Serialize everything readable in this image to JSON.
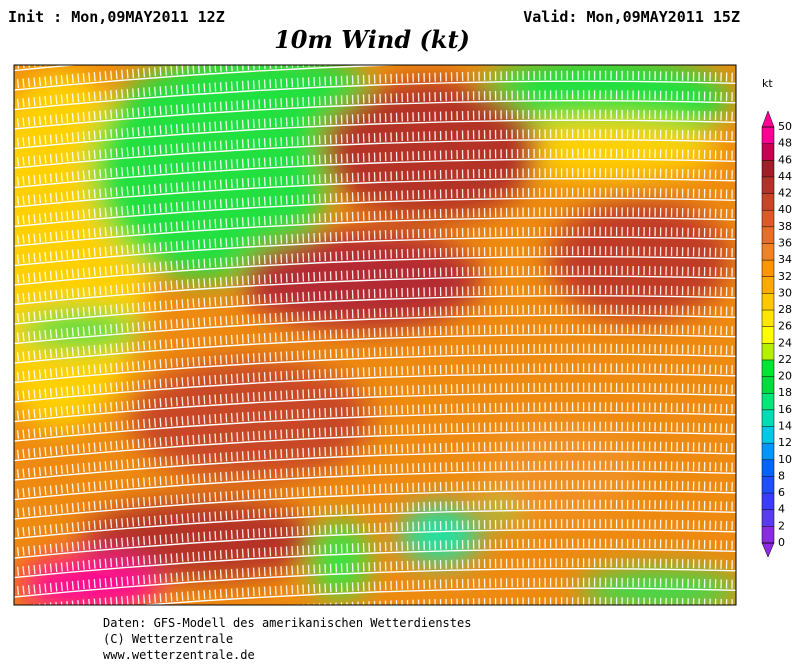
{
  "header": {
    "init": "Init : Mon,09MAY2011 12Z",
    "valid": "Valid: Mon,09MAY2011 15Z",
    "title": "10m Wind (kt)"
  },
  "colorbar": {
    "unit": "kt",
    "ticks": [
      0,
      2,
      4,
      6,
      8,
      10,
      12,
      14,
      16,
      18,
      20,
      22,
      24,
      26,
      28,
      30,
      32,
      34,
      36,
      38,
      40,
      42,
      44,
      46,
      48,
      50
    ],
    "colors": [
      "#8a2be2",
      "#5a3cf0",
      "#3c3cff",
      "#1e50ff",
      "#0064ff",
      "#0096ff",
      "#00c8e6",
      "#00dcb4",
      "#00e678",
      "#00dc3c",
      "#00e632",
      "#b4f000",
      "#ffff00",
      "#ffe600",
      "#ffc800",
      "#ffaa00",
      "#ff9600",
      "#f08228",
      "#e66e28",
      "#dc5a28",
      "#c84628",
      "#b43228",
      "#a01e28",
      "#c80050",
      "#ff0096"
    ]
  },
  "footer": {
    "lines": [
      "Daten: GFS-Modell des amerikanischen Wetterdienstes",
      "(C) Wetterzentrale",
      "www.wetterzentrale.de"
    ]
  }
}
